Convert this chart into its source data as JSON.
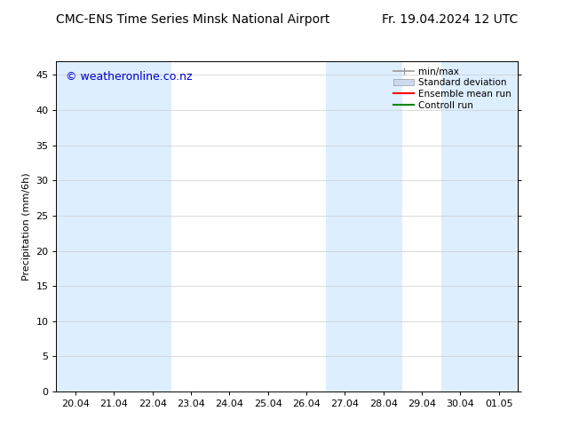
{
  "title_left": "CMC-ENS Time Series Minsk National Airport",
  "title_right": "Fr. 19.04.2024 12 UTC",
  "ylabel": "Precipitation (mm/6h)",
  "watermark": "© weatheronline.co.nz",
  "xtick_labels": [
    "20.04",
    "21.04",
    "22.04",
    "23.04",
    "24.04",
    "25.04",
    "26.04",
    "27.04",
    "28.04",
    "29.04",
    "30.04",
    "01.05"
  ],
  "ytick_labels": [
    0,
    5,
    10,
    15,
    20,
    25,
    30,
    35,
    40,
    45
  ],
  "ylim": [
    0,
    47
  ],
  "shade_color": "#ddeeff",
  "background_color": "#ffffff",
  "shaded_indices": [
    0,
    1,
    3,
    5,
    7,
    10
  ],
  "legend_items": [
    {
      "label": "min/max",
      "color": "#aaaaaa",
      "style": "errorbar"
    },
    {
      "label": "Standard deviation",
      "color": "#ccdaee",
      "style": "bar"
    },
    {
      "label": "Ensemble mean run",
      "color": "#ff0000",
      "style": "line"
    },
    {
      "label": "Controll run",
      "color": "#008800",
      "style": "line"
    }
  ],
  "title_fontsize": 10,
  "axis_fontsize": 8,
  "watermark_color": "#0000cc",
  "watermark_fontsize": 9
}
